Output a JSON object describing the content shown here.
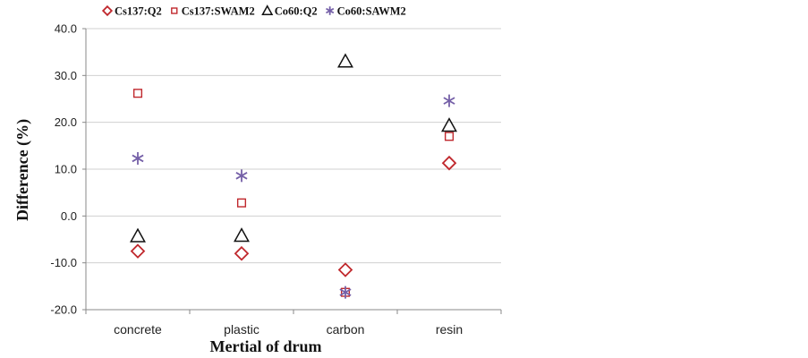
{
  "chart_data": {
    "type": "scatter",
    "categories": [
      "concrete",
      "plastic",
      "carbon",
      "resin"
    ],
    "xlabel": "Mertial of drum",
    "ylabel": "Difference (%)",
    "ylim": [
      -20,
      40
    ],
    "yticks": [
      "-20.0",
      "-10.0",
      "0.0",
      "10.0",
      "20.0",
      "30.0",
      "40.0"
    ],
    "grid": true,
    "legend_position": "top",
    "series": [
      {
        "name": "Cs137:Q2",
        "marker": "diamond",
        "color": "#c0282d",
        "values": [
          -7.5,
          -8.0,
          -11.5,
          11.3
        ]
      },
      {
        "name": "Cs137:SWAM2",
        "marker": "square",
        "color": "#c0282d",
        "values": [
          26.2,
          2.8,
          -16.3,
          17.0
        ]
      },
      {
        "name": "Co60:Q2",
        "marker": "triangle",
        "color": "#111111",
        "values": [
          -4.3,
          -4.2,
          33.0,
          19.3
        ]
      },
      {
        "name": "Co60:SAWM2",
        "marker": "star",
        "color": "#7560a8",
        "values": [
          12.3,
          8.6,
          -16.3,
          24.6
        ]
      }
    ]
  }
}
